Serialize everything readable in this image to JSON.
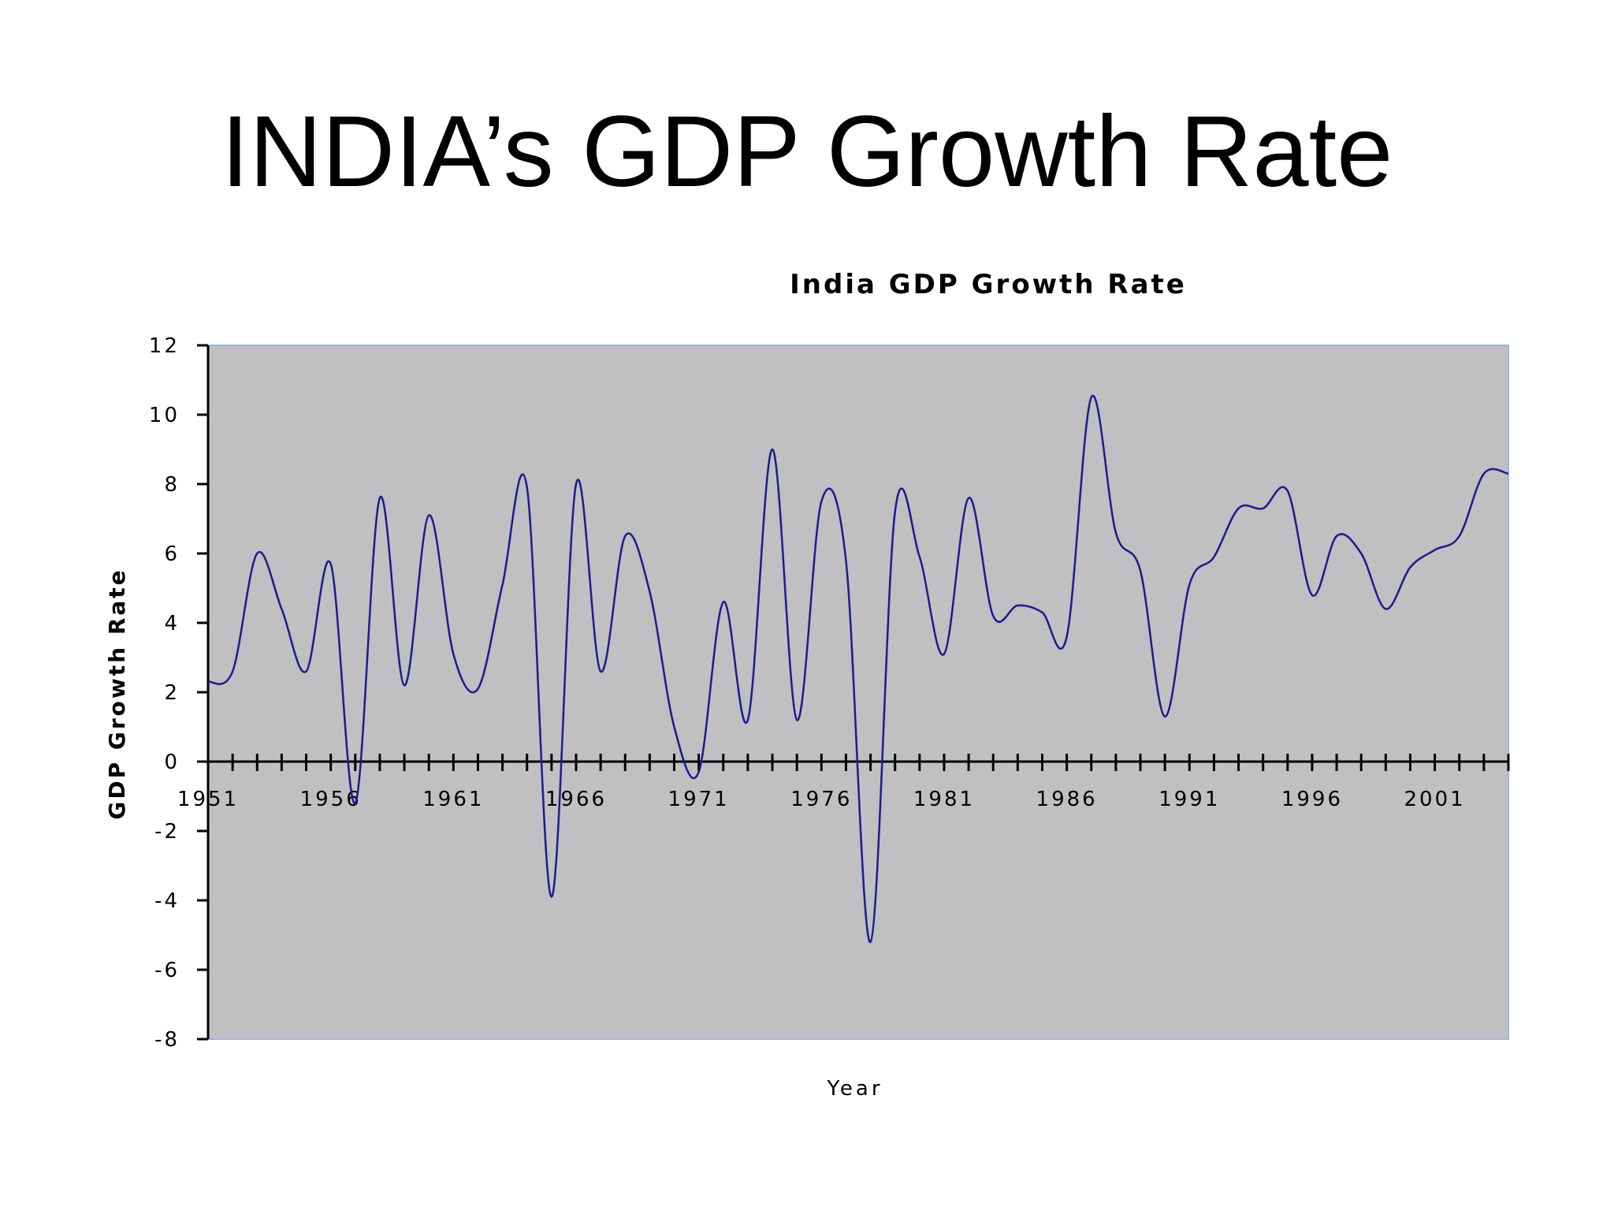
{
  "slide": {
    "title": "INDIA’s GDP Growth Rate"
  },
  "chart_data": {
    "type": "line",
    "title": "India GDP Growth Rate",
    "xlabel": "Year",
    "ylabel": "GDP Growth Rate",
    "ylim": [
      -8,
      12
    ],
    "yticks": [
      "12",
      "10",
      "8",
      "6",
      "4",
      "2",
      "0",
      "-2",
      "-4",
      "-6",
      "-8"
    ],
    "xticks": [
      "1951",
      "1956",
      "1961",
      "1966",
      "1971",
      "1976",
      "1981",
      "1986",
      "1991",
      "1996",
      "2001"
    ],
    "xlim": [
      1951,
      2004
    ],
    "grid": false,
    "legend": "none",
    "colors": {
      "plot_background": "#c0bfc1",
      "line": "#1c1c8c",
      "axis": "#000000",
      "plot_border": "#9cb8d8"
    },
    "series": [
      {
        "x": [
          1951,
          1952,
          1953,
          1954,
          1955,
          1956,
          1957,
          1958,
          1959,
          1960,
          1961,
          1962,
          1963,
          1964,
          1965,
          1966,
          1967,
          1968,
          1969,
          1970,
          1971,
          1972,
          1973,
          1974,
          1975,
          1976,
          1977,
          1978,
          1979,
          1980,
          1981,
          1982,
          1983,
          1984,
          1985,
          1986,
          1987,
          1988,
          1989,
          1990,
          1991,
          1992,
          1993,
          1994,
          1995,
          1996,
          1997,
          1998,
          1999,
          2000,
          2001,
          2002,
          2003,
          2004
        ],
        "y": [
          2.3,
          2.6,
          6.0,
          4.4,
          2.6,
          5.7,
          -1.2,
          7.6,
          2.2,
          7.1,
          3.1,
          2.1,
          5.1,
          7.9,
          -3.9,
          8.0,
          2.6,
          6.5,
          4.9,
          1.0,
          -0.3,
          4.6,
          1.2,
          9.0,
          1.2,
          7.5,
          5.8,
          -5.2,
          7.2,
          5.9,
          3.1,
          7.6,
          4.2,
          4.5,
          4.3,
          3.6,
          10.5,
          6.6,
          5.5,
          1.3,
          5.1,
          5.9,
          7.3,
          7.3,
          7.8,
          4.8,
          6.5,
          6.0,
          4.4,
          5.6,
          6.1,
          6.5,
          8.3,
          8.3
        ]
      }
    ]
  }
}
